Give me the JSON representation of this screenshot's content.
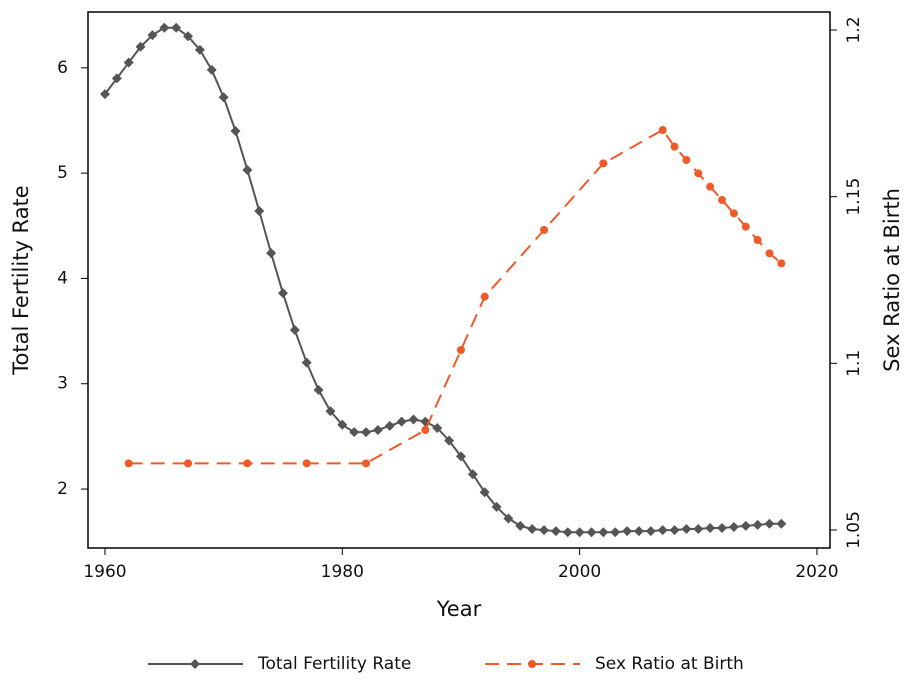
{
  "chart_data": {
    "type": "line",
    "xlabel": "Year",
    "ylabel": "Total Fertility Rate",
    "y2label": "Sex Ratio at Birth",
    "xlim": [
      1958.57,
      2021.1
    ],
    "xticks": [
      1960,
      1980,
      2000,
      2020
    ],
    "ylim": [
      1.44,
      6.53
    ],
    "yticks": [
      2,
      3,
      4,
      5,
      6
    ],
    "y2lim": [
      1.0446,
      1.2054
    ],
    "y2ticks": [
      1.05,
      1.1,
      1.15,
      1.2
    ],
    "legend": "bottom",
    "series": [
      {
        "name": "Total Fertility Rate",
        "color": "#555555",
        "marker": "diamond",
        "dashed": false,
        "x": [
          1960,
          1961,
          1962,
          1963,
          1964,
          1965,
          1966,
          1967,
          1968,
          1969,
          1970,
          1971,
          1972,
          1973,
          1974,
          1975,
          1976,
          1977,
          1978,
          1979,
          1980,
          1981,
          1982,
          1983,
          1984,
          1985,
          1986,
          1987,
          1988,
          1989,
          1990,
          1991,
          1992,
          1993,
          1994,
          1995,
          1996,
          1997,
          1998,
          1999,
          2000,
          2001,
          2002,
          2003,
          2004,
          2005,
          2006,
          2007,
          2008,
          2009,
          2010,
          2011,
          2012,
          2013,
          2014,
          2015,
          2016,
          2017
        ],
        "values": [
          5.75,
          5.9,
          6.05,
          6.2,
          6.31,
          6.38,
          6.38,
          6.3,
          6.17,
          5.98,
          5.72,
          5.4,
          5.03,
          4.64,
          4.24,
          3.86,
          3.51,
          3.2,
          2.94,
          2.74,
          2.61,
          2.54,
          2.54,
          2.56,
          2.6,
          2.64,
          2.66,
          2.64,
          2.58,
          2.46,
          2.31,
          2.14,
          1.97,
          1.83,
          1.72,
          1.65,
          1.62,
          1.61,
          1.6,
          1.59,
          1.59,
          1.59,
          1.59,
          1.59,
          1.6,
          1.6,
          1.6,
          1.61,
          1.61,
          1.62,
          1.62,
          1.63,
          1.63,
          1.64,
          1.65,
          1.66,
          1.67,
          1.67
        ]
      },
      {
        "name": "Sex Ratio at Birth",
        "color": "#f05a28",
        "marker": "circle",
        "dashed": true,
        "axis": "y2",
        "x": [
          1962,
          1967,
          1972,
          1977,
          1982,
          1987,
          1990,
          1992,
          1997,
          2002,
          2007,
          2008,
          2009,
          2010,
          2011,
          2012,
          2013,
          2014,
          2015,
          2016,
          2017
        ],
        "values": [
          1.07,
          1.07,
          1.07,
          1.07,
          1.07,
          1.08,
          1.104,
          1.12,
          1.14,
          1.16,
          1.17,
          1.165,
          1.161,
          1.157,
          1.153,
          1.149,
          1.145,
          1.141,
          1.137,
          1.133,
          1.13
        ]
      }
    ]
  }
}
